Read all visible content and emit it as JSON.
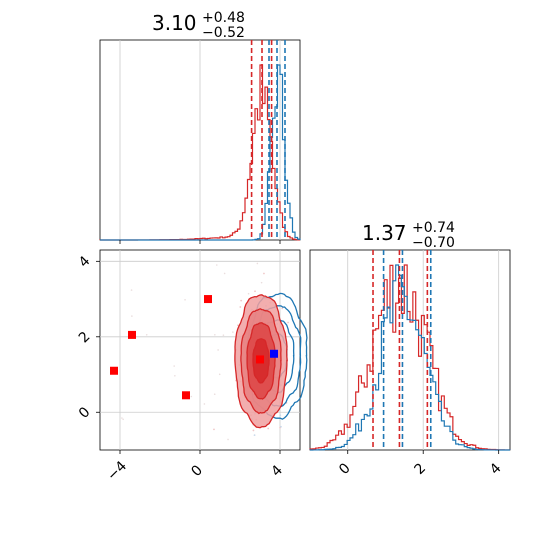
{
  "colors": {
    "red": "#d62728",
    "blue": "#1f77b4",
    "red_fill_dark": "#d62728",
    "red_fill_light": "#f0a0a0",
    "grid": "#cccccc",
    "marker_red": "#ff0000",
    "marker_blue": "#0000ff"
  },
  "chart_data": [
    {
      "type": "histogram",
      "panel": "marginal-x",
      "title": {
        "value": "3.10",
        "plus": "+0.48",
        "minus": "−0.52"
      },
      "xlim": [
        -5,
        5
      ],
      "grid": true,
      "series": [
        {
          "color": "red",
          "peak": 3.1,
          "sigma": 0.5,
          "quantiles": [
            2.58,
            3.1,
            3.58
          ]
        },
        {
          "color": "blue",
          "peak": 3.9,
          "sigma": 0.32,
          "quantiles": [
            3.45,
            3.85,
            4.25
          ]
        }
      ],
      "xticks": [
        -4,
        0,
        4
      ]
    },
    {
      "type": "histogram",
      "panel": "marginal-y",
      "title": {
        "value": "1.37",
        "plus": "+0.74",
        "minus": "−0.70"
      },
      "xlim": [
        -1,
        4.3
      ],
      "grid": true,
      "series": [
        {
          "color": "red",
          "peak": 1.37,
          "sigma": 0.72,
          "quantiles": [
            0.67,
            1.37,
            2.11
          ]
        },
        {
          "color": "blue",
          "peak": 1.45,
          "sigma": 0.6,
          "quantiles": [
            0.95,
            1.45,
            2.2
          ]
        }
      ],
      "xticks": [
        {
          "v": 0,
          "label": "0"
        },
        {
          "v": 2,
          "label": "2"
        },
        {
          "v": 4,
          "label": "4"
        }
      ]
    },
    {
      "type": "scatter",
      "panel": "joint",
      "xlim": [
        -5,
        5
      ],
      "ylim": [
        -1,
        4.3
      ],
      "grid": true,
      "xticks": [
        {
          "v": -4,
          "label": "−4"
        },
        {
          "v": 0,
          "label": "0"
        },
        {
          "v": 4,
          "label": "4"
        }
      ],
      "yticks": [
        {
          "v": 0,
          "label": "0"
        },
        {
          "v": 2,
          "label": "2"
        },
        {
          "v": 4,
          "label": "4"
        }
      ],
      "red_markers": [
        [
          -4.3,
          1.1
        ],
        [
          -3.4,
          2.05
        ],
        [
          -0.7,
          0.45
        ],
        [
          0.4,
          3.0
        ],
        [
          3.0,
          1.4
        ]
      ],
      "blue_markers": [
        [
          3.7,
          1.55
        ]
      ],
      "red_contour_center": [
        3.05,
        1.37
      ],
      "blue_contour_center": [
        3.85,
        1.5
      ]
    }
  ]
}
